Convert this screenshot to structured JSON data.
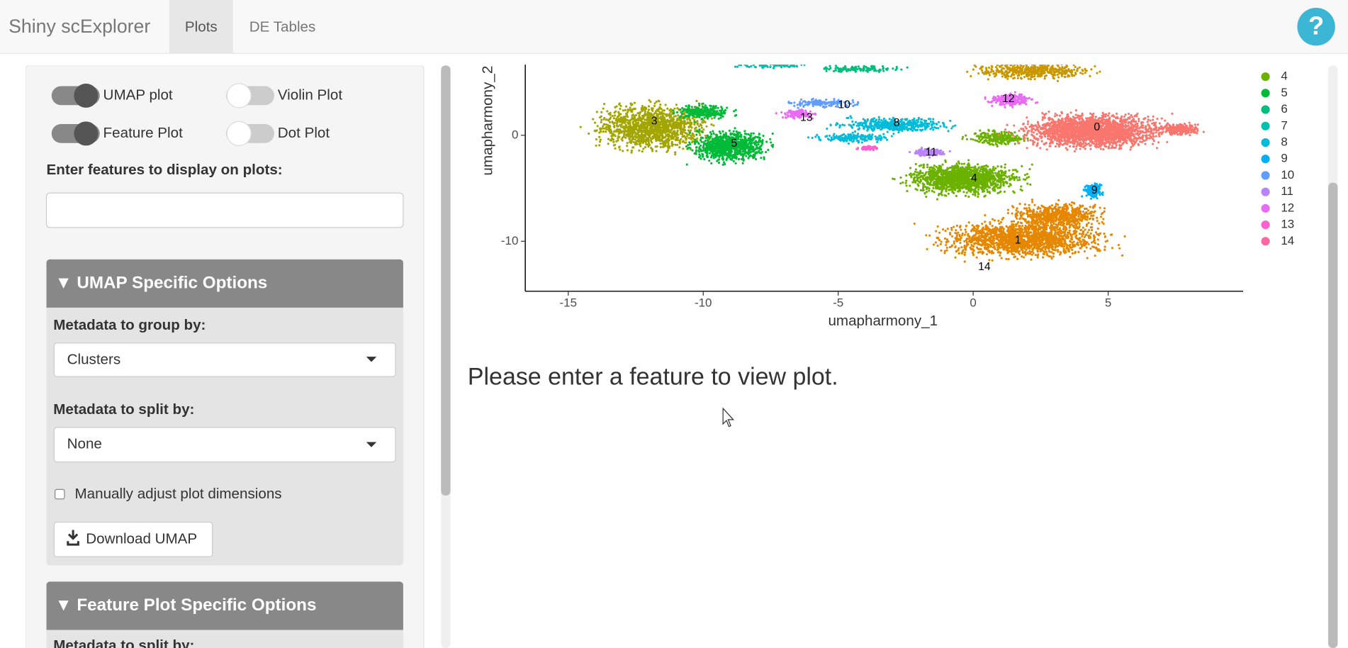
{
  "navbar": {
    "brand": "Shiny scExplorer",
    "tabs": [
      "Plots",
      "DE Tables"
    ],
    "help": "?"
  },
  "sidebar": {
    "toggles": [
      {
        "label": "UMAP plot",
        "on": true
      },
      {
        "label": "Violin Plot",
        "on": false
      },
      {
        "label": "Feature Plot",
        "on": true
      },
      {
        "label": "Dot Plot",
        "on": false
      }
    ],
    "features_label": "Enter features to display on plots:",
    "umap_options": {
      "title": "▼  UMAP Specific Options",
      "group_label": "Metadata to group by:",
      "group_value": "Clusters",
      "split_label": "Metadata to split by:",
      "split_value": "None",
      "adjust_label": "Manually adjust plot dimensions",
      "download_button": "Download UMAP"
    },
    "feature_options": {
      "title": "▼  Feature Plot Specific Options",
      "split_label": "Metadata to split by:"
    }
  },
  "main": {
    "umap": {
      "x_label": "umapharmony_1",
      "y_label": "umapharmony_2",
      "xticks": [
        -15,
        -10,
        -5,
        0,
        5
      ],
      "yticks": [
        0,
        -10
      ],
      "cluster_labels": [
        "0",
        "1",
        "3",
        "4",
        "5",
        "8",
        "9",
        "10",
        "11",
        "12",
        "13",
        "14"
      ],
      "legend": [
        {
          "label": "4",
          "color": "#6BB100"
        },
        {
          "label": "5",
          "color": "#00BA38"
        },
        {
          "label": "6",
          "color": "#00BF7D"
        },
        {
          "label": "7",
          "color": "#00C0AF"
        },
        {
          "label": "8",
          "color": "#00BCD8"
        },
        {
          "label": "9",
          "color": "#00B0F6"
        },
        {
          "label": "10",
          "color": "#619CFF"
        },
        {
          "label": "11",
          "color": "#B983FF"
        },
        {
          "label": "12",
          "color": "#E76BF3"
        },
        {
          "label": "13",
          "color": "#FD61D1"
        },
        {
          "label": "14",
          "color": "#FF67A4"
        }
      ]
    },
    "message": "Please enter a feature to view plot."
  }
}
